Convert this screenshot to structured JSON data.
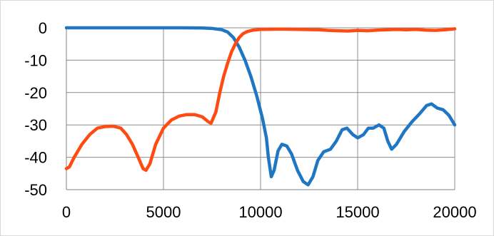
{
  "chart_data": {
    "type": "line",
    "title": "",
    "xlabel": "",
    "ylabel": "",
    "xlim": [
      0,
      20000
    ],
    "ylim": [
      -50,
      0
    ],
    "x_ticks": [
      0,
      5000,
      10000,
      15000,
      20000
    ],
    "x_tick_labels": [
      "0",
      "5000",
      "10000",
      "15000",
      "20000"
    ],
    "y_ticks": [
      0,
      -10,
      -20,
      -30,
      -40,
      -50
    ],
    "y_tick_labels": [
      "0",
      "-10",
      "-20",
      "-30",
      "-40",
      "-50"
    ],
    "grid": true,
    "legend": "none",
    "series": [
      {
        "color": "#1f77c4",
        "points": [
          [
            0,
            0
          ],
          [
            2000,
            0
          ],
          [
            4000,
            0
          ],
          [
            6000,
            0
          ],
          [
            7000,
            -0.05
          ],
          [
            7500,
            -0.2
          ],
          [
            8000,
            -0.6
          ],
          [
            8300,
            -1.3
          ],
          [
            8600,
            -3
          ],
          [
            8900,
            -6
          ],
          [
            9200,
            -10
          ],
          [
            9500,
            -15
          ],
          [
            9800,
            -21
          ],
          [
            10100,
            -28
          ],
          [
            10300,
            -34
          ],
          [
            10400,
            -40
          ],
          [
            10550,
            -46
          ],
          [
            10700,
            -44
          ],
          [
            10900,
            -38
          ],
          [
            11100,
            -36
          ],
          [
            11350,
            -36.5
          ],
          [
            11600,
            -39
          ],
          [
            11900,
            -44
          ],
          [
            12200,
            -47.5
          ],
          [
            12450,
            -48.5
          ],
          [
            12700,
            -46
          ],
          [
            12950,
            -41
          ],
          [
            13250,
            -38.3
          ],
          [
            13600,
            -37.5
          ],
          [
            13900,
            -35
          ],
          [
            14200,
            -31.5
          ],
          [
            14450,
            -31
          ],
          [
            14750,
            -33
          ],
          [
            15000,
            -34
          ],
          [
            15300,
            -33
          ],
          [
            15550,
            -31
          ],
          [
            15800,
            -31
          ],
          [
            16100,
            -30
          ],
          [
            16350,
            -31
          ],
          [
            16550,
            -35
          ],
          [
            16750,
            -37.5
          ],
          [
            17000,
            -36
          ],
          [
            17400,
            -32
          ],
          [
            17800,
            -29
          ],
          [
            18200,
            -26.5
          ],
          [
            18550,
            -24
          ],
          [
            18800,
            -23.5
          ],
          [
            19100,
            -24.8
          ],
          [
            19400,
            -25.3
          ],
          [
            19700,
            -27
          ],
          [
            20000,
            -30
          ]
        ]
      },
      {
        "color": "#ff4a12",
        "points": [
          [
            0,
            -43.5
          ],
          [
            150,
            -43
          ],
          [
            400,
            -40
          ],
          [
            800,
            -36
          ],
          [
            1200,
            -33
          ],
          [
            1600,
            -31
          ],
          [
            2000,
            -30.5
          ],
          [
            2400,
            -30.4
          ],
          [
            2800,
            -31
          ],
          [
            3100,
            -33
          ],
          [
            3400,
            -36
          ],
          [
            3700,
            -40
          ],
          [
            3950,
            -43.5
          ],
          [
            4100,
            -44
          ],
          [
            4300,
            -42
          ],
          [
            4600,
            -36
          ],
          [
            5000,
            -31
          ],
          [
            5400,
            -28.5
          ],
          [
            5800,
            -27.3
          ],
          [
            6200,
            -26.8
          ],
          [
            6600,
            -26.8
          ],
          [
            7000,
            -27.5
          ],
          [
            7300,
            -29
          ],
          [
            7450,
            -29.5
          ],
          [
            7700,
            -26
          ],
          [
            7900,
            -20
          ],
          [
            8100,
            -15
          ],
          [
            8300,
            -11
          ],
          [
            8500,
            -7.5
          ],
          [
            8700,
            -5
          ],
          [
            8900,
            -3
          ],
          [
            9100,
            -1.8
          ],
          [
            9300,
            -1.2
          ],
          [
            9600,
            -0.7
          ],
          [
            10000,
            -0.5
          ],
          [
            11000,
            -0.4
          ],
          [
            12000,
            -0.5
          ],
          [
            13000,
            -0.6
          ],
          [
            13500,
            -0.8
          ],
          [
            14000,
            -0.9
          ],
          [
            14500,
            -1
          ],
          [
            15000,
            -0.8
          ],
          [
            15500,
            -0.9
          ],
          [
            16000,
            -0.7
          ],
          [
            16500,
            -0.6
          ],
          [
            17000,
            -0.5
          ],
          [
            17500,
            -0.6
          ],
          [
            18000,
            -0.5
          ],
          [
            18500,
            -0.7
          ],
          [
            19000,
            -0.8
          ],
          [
            19500,
            -0.6
          ],
          [
            20000,
            -0.3
          ]
        ]
      }
    ]
  }
}
